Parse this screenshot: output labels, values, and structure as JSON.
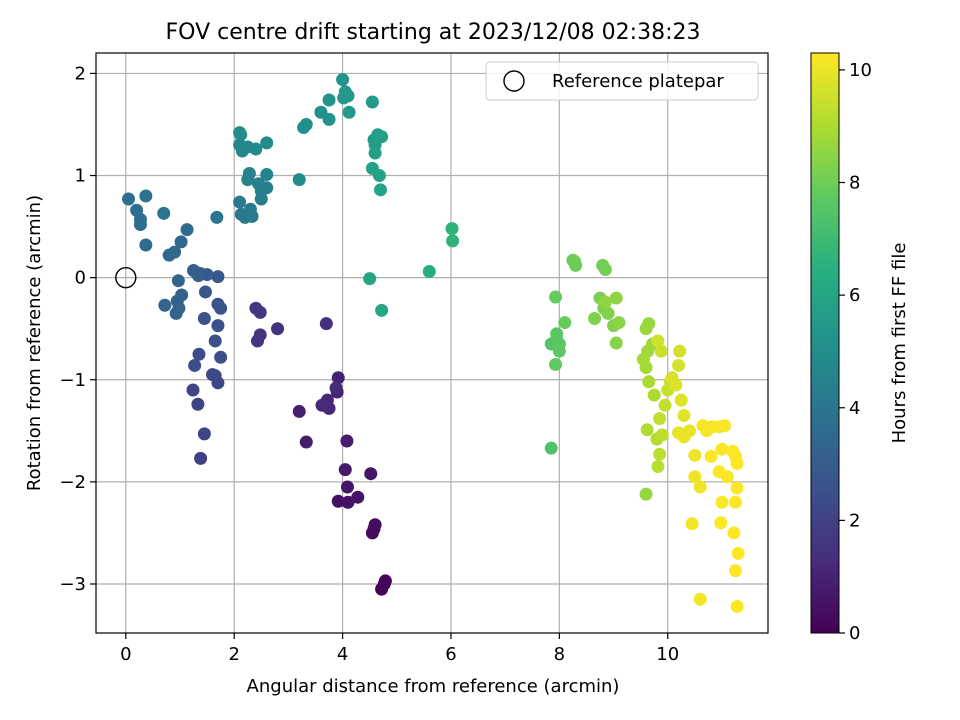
{
  "chart_data": {
    "type": "scatter",
    "title": "FOV centre drift starting at 2023/12/08 02:38:23",
    "xlabel": "Angular distance from reference (arcmin)",
    "ylabel": "Rotation from reference (arcmin)",
    "xlim": [
      -0.55,
      11.85
    ],
    "ylim": [
      -3.48,
      2.2
    ],
    "xticks": [
      0,
      2,
      4,
      6,
      8,
      10
    ],
    "xtick_labels": [
      "0",
      "2",
      "4",
      "6",
      "8",
      "10"
    ],
    "yticks": [
      -3,
      -2,
      -1,
      0,
      1,
      2
    ],
    "ytick_labels": [
      "−3",
      "−2",
      "−1",
      "0",
      "1",
      "2"
    ],
    "grid": true,
    "legend": {
      "position": "top-right",
      "entries": [
        "Reference platepar"
      ]
    },
    "reference_point": {
      "x": 0,
      "y": 0,
      "label": "Reference platepar"
    },
    "colorbar": {
      "label": "Hours from first FF file",
      "range": [
        0,
        10.3
      ],
      "ticks": [
        0,
        2,
        4,
        6,
        8,
        10
      ],
      "tick_labels": [
        "0",
        "2",
        "4",
        "6",
        "8",
        "10"
      ],
      "colormap": "viridis"
    },
    "points": [
      {
        "x": 4.72,
        "y": -3.05,
        "c": 0.05
      },
      {
        "x": 4.79,
        "y": -2.97,
        "c": 0.1
      },
      {
        "x": 4.77,
        "y": -3.0,
        "c": 0.15
      },
      {
        "x": 4.55,
        "y": -2.5,
        "c": 0.25
      },
      {
        "x": 4.6,
        "y": -2.42,
        "c": 0.3
      },
      {
        "x": 4.58,
        "y": -2.46,
        "c": 0.35
      },
      {
        "x": 3.92,
        "y": -2.19,
        "c": 0.45
      },
      {
        "x": 4.1,
        "y": -2.2,
        "c": 0.5
      },
      {
        "x": 4.28,
        "y": -2.15,
        "c": 0.55
      },
      {
        "x": 4.52,
        "y": -1.92,
        "c": 0.6
      },
      {
        "x": 4.09,
        "y": -2.05,
        "c": 0.65
      },
      {
        "x": 4.05,
        "y": -1.88,
        "c": 0.7
      },
      {
        "x": 4.08,
        "y": -1.6,
        "c": 0.8
      },
      {
        "x": 3.33,
        "y": -1.61,
        "c": 0.85
      },
      {
        "x": 3.2,
        "y": -1.31,
        "c": 0.9
      },
      {
        "x": 3.92,
        "y": -0.98,
        "c": 1.0
      },
      {
        "x": 3.9,
        "y": -1.12,
        "c": 1.05
      },
      {
        "x": 3.72,
        "y": -1.2,
        "c": 1.1
      },
      {
        "x": 3.75,
        "y": -1.28,
        "c": 1.15
      },
      {
        "x": 3.62,
        "y": -1.25,
        "c": 1.2
      },
      {
        "x": 3.88,
        "y": -1.08,
        "c": 1.25
      },
      {
        "x": 3.7,
        "y": -0.45,
        "c": 1.35
      },
      {
        "x": 2.8,
        "y": -0.5,
        "c": 1.45
      },
      {
        "x": 2.48,
        "y": -0.56,
        "c": 1.5
      },
      {
        "x": 2.43,
        "y": -0.62,
        "c": 1.55
      },
      {
        "x": 2.48,
        "y": -0.34,
        "c": 1.6
      },
      {
        "x": 2.4,
        "y": -0.3,
        "c": 1.65
      },
      {
        "x": 1.38,
        "y": -1.77,
        "c": 2.0
      },
      {
        "x": 1.45,
        "y": -1.53,
        "c": 2.05
      },
      {
        "x": 1.33,
        "y": -1.24,
        "c": 2.1
      },
      {
        "x": 1.24,
        "y": -1.1,
        "c": 2.15
      },
      {
        "x": 1.7,
        "y": -1.03,
        "c": 2.2
      },
      {
        "x": 1.6,
        "y": -0.95,
        "c": 2.25
      },
      {
        "x": 1.65,
        "y": -0.96,
        "c": 2.3
      },
      {
        "x": 1.35,
        "y": -0.75,
        "c": 2.35
      },
      {
        "x": 1.27,
        "y": -0.86,
        "c": 2.4
      },
      {
        "x": 1.75,
        "y": -0.78,
        "c": 2.45
      },
      {
        "x": 1.65,
        "y": -0.62,
        "c": 2.5
      },
      {
        "x": 1.7,
        "y": -0.47,
        "c": 2.55
      },
      {
        "x": 1.45,
        "y": -0.4,
        "c": 2.6
      },
      {
        "x": 1.75,
        "y": -0.3,
        "c": 2.65
      },
      {
        "x": 1.7,
        "y": -0.26,
        "c": 2.7
      },
      {
        "x": 1.47,
        "y": -0.14,
        "c": 2.75
      },
      {
        "x": 1.7,
        "y": 0.01,
        "c": 2.8
      },
      {
        "x": 1.5,
        "y": 0.03,
        "c": 2.85
      },
      {
        "x": 1.38,
        "y": 0.04,
        "c": 2.9
      },
      {
        "x": 1.3,
        "y": 0.05,
        "c": 2.95
      },
      {
        "x": 1.25,
        "y": 0.07,
        "c": 3.0
      },
      {
        "x": 1.34,
        "y": 0.02,
        "c": 3.05
      },
      {
        "x": 1.03,
        "y": -0.17,
        "c": 3.1
      },
      {
        "x": 0.95,
        "y": -0.23,
        "c": 3.15
      },
      {
        "x": 0.98,
        "y": -0.3,
        "c": 3.2
      },
      {
        "x": 0.93,
        "y": -0.35,
        "c": 3.25
      },
      {
        "x": 0.72,
        "y": -0.27,
        "c": 3.3
      },
      {
        "x": 0.97,
        "y": -0.03,
        "c": 3.35
      },
      {
        "x": 0.8,
        "y": 0.22,
        "c": 3.4
      },
      {
        "x": 0.9,
        "y": 0.25,
        "c": 3.45
      },
      {
        "x": 1.02,
        "y": 0.35,
        "c": 3.5
      },
      {
        "x": 1.13,
        "y": 0.47,
        "c": 3.55
      },
      {
        "x": 0.37,
        "y": 0.32,
        "c": 3.6
      },
      {
        "x": 0.27,
        "y": 0.52,
        "c": 3.65
      },
      {
        "x": 0.27,
        "y": 0.57,
        "c": 3.7
      },
      {
        "x": 0.2,
        "y": 0.66,
        "c": 3.75
      },
      {
        "x": 0.05,
        "y": 0.77,
        "c": 3.8
      },
      {
        "x": 0.37,
        "y": 0.8,
        "c": 3.85
      },
      {
        "x": 0.7,
        "y": 0.63,
        "c": 3.9
      },
      {
        "x": 1.68,
        "y": 0.59,
        "c": 4.0
      },
      {
        "x": 2.13,
        "y": 0.62,
        "c": 4.05
      },
      {
        "x": 2.2,
        "y": 0.59,
        "c": 4.1
      },
      {
        "x": 2.33,
        "y": 0.6,
        "c": 4.15
      },
      {
        "x": 2.3,
        "y": 0.67,
        "c": 4.2
      },
      {
        "x": 2.1,
        "y": 0.74,
        "c": 4.25
      },
      {
        "x": 2.5,
        "y": 0.77,
        "c": 4.3
      },
      {
        "x": 2.5,
        "y": 0.85,
        "c": 4.35
      },
      {
        "x": 2.6,
        "y": 0.88,
        "c": 4.4
      },
      {
        "x": 2.45,
        "y": 0.92,
        "c": 4.45
      },
      {
        "x": 2.25,
        "y": 0.96,
        "c": 4.5
      },
      {
        "x": 2.28,
        "y": 1.02,
        "c": 4.55
      },
      {
        "x": 2.6,
        "y": 1.01,
        "c": 4.6
      },
      {
        "x": 2.15,
        "y": 1.24,
        "c": 4.65
      },
      {
        "x": 2.1,
        "y": 1.3,
        "c": 4.7
      },
      {
        "x": 2.25,
        "y": 1.28,
        "c": 4.75
      },
      {
        "x": 2.4,
        "y": 1.26,
        "c": 4.8
      },
      {
        "x": 2.6,
        "y": 1.32,
        "c": 4.85
      },
      {
        "x": 2.1,
        "y": 1.42,
        "c": 4.9
      },
      {
        "x": 2.12,
        "y": 1.4,
        "c": 4.95
      },
      {
        "x": 3.2,
        "y": 0.96,
        "c": 5.0
      },
      {
        "x": 3.28,
        "y": 1.47,
        "c": 5.05
      },
      {
        "x": 3.33,
        "y": 1.5,
        "c": 5.1
      },
      {
        "x": 3.6,
        "y": 1.62,
        "c": 5.15
      },
      {
        "x": 3.75,
        "y": 1.55,
        "c": 5.2
      },
      {
        "x": 3.75,
        "y": 1.74,
        "c": 5.25
      },
      {
        "x": 4.0,
        "y": 1.94,
        "c": 5.3
      },
      {
        "x": 4.05,
        "y": 1.82,
        "c": 5.35
      },
      {
        "x": 4.02,
        "y": 1.76,
        "c": 5.4
      },
      {
        "x": 4.1,
        "y": 1.78,
        "c": 5.45
      },
      {
        "x": 4.12,
        "y": 1.62,
        "c": 5.5
      },
      {
        "x": 4.55,
        "y": 1.72,
        "c": 5.55
      },
      {
        "x": 4.58,
        "y": 1.35,
        "c": 5.6
      },
      {
        "x": 4.6,
        "y": 1.3,
        "c": 5.65
      },
      {
        "x": 4.65,
        "y": 1.4,
        "c": 5.7
      },
      {
        "x": 4.72,
        "y": 1.38,
        "c": 5.75
      },
      {
        "x": 4.6,
        "y": 1.22,
        "c": 5.8
      },
      {
        "x": 4.55,
        "y": 1.07,
        "c": 5.85
      },
      {
        "x": 4.68,
        "y": 1.0,
        "c": 5.9
      },
      {
        "x": 4.7,
        "y": 0.86,
        "c": 5.95
      },
      {
        "x": 4.5,
        "y": -0.01,
        "c": 6.0
      },
      {
        "x": 4.72,
        "y": -0.32,
        "c": 6.05
      },
      {
        "x": 5.6,
        "y": 0.06,
        "c": 6.4
      },
      {
        "x": 6.02,
        "y": 0.48,
        "c": 6.6
      },
      {
        "x": 6.03,
        "y": 0.36,
        "c": 6.65
      },
      {
        "x": 7.85,
        "y": -1.67,
        "c": 7.4
      },
      {
        "x": 7.85,
        "y": -0.65,
        "c": 7.5
      },
      {
        "x": 7.95,
        "y": -0.6,
        "c": 7.55
      },
      {
        "x": 8.0,
        "y": -0.65,
        "c": 7.6
      },
      {
        "x": 7.95,
        "y": -0.55,
        "c": 7.65
      },
      {
        "x": 8.0,
        "y": -0.72,
        "c": 7.7
      },
      {
        "x": 7.93,
        "y": -0.85,
        "c": 7.75
      },
      {
        "x": 7.93,
        "y": -0.19,
        "c": 7.8
      },
      {
        "x": 8.1,
        "y": -0.44,
        "c": 7.85
      },
      {
        "x": 8.25,
        "y": 0.17,
        "c": 7.9
      },
      {
        "x": 8.3,
        "y": 0.12,
        "c": 7.95
      },
      {
        "x": 8.28,
        "y": 0.16,
        "c": 8.0
      },
      {
        "x": 8.8,
        "y": 0.12,
        "c": 8.05
      },
      {
        "x": 8.85,
        "y": 0.08,
        "c": 8.1
      },
      {
        "x": 8.75,
        "y": -0.2,
        "c": 8.15
      },
      {
        "x": 8.82,
        "y": -0.3,
        "c": 8.2
      },
      {
        "x": 8.65,
        "y": -0.4,
        "c": 8.25
      },
      {
        "x": 8.9,
        "y": -0.35,
        "c": 8.3
      },
      {
        "x": 9.0,
        "y": -0.47,
        "c": 8.35
      },
      {
        "x": 9.05,
        "y": -0.64,
        "c": 8.4
      },
      {
        "x": 9.1,
        "y": -0.44,
        "c": 8.45
      },
      {
        "x": 9.05,
        "y": -0.2,
        "c": 8.5
      },
      {
        "x": 8.85,
        "y": -0.24,
        "c": 8.55
      },
      {
        "x": 9.6,
        "y": -2.12,
        "c": 8.6
      },
      {
        "x": 9.65,
        "y": -0.45,
        "c": 8.65
      },
      {
        "x": 9.6,
        "y": -0.5,
        "c": 8.7
      },
      {
        "x": 9.72,
        "y": -0.65,
        "c": 8.75
      },
      {
        "x": 9.63,
        "y": -0.72,
        "c": 8.8
      },
      {
        "x": 9.55,
        "y": -0.8,
        "c": 8.85
      },
      {
        "x": 9.6,
        "y": -0.88,
        "c": 8.9
      },
      {
        "x": 9.65,
        "y": -1.02,
        "c": 8.95
      },
      {
        "x": 9.75,
        "y": -1.15,
        "c": 9.0
      },
      {
        "x": 9.62,
        "y": -1.49,
        "c": 9.05
      },
      {
        "x": 9.8,
        "y": -1.58,
        "c": 9.1
      },
      {
        "x": 9.82,
        "y": -1.85,
        "c": 9.15
      },
      {
        "x": 9.85,
        "y": -1.73,
        "c": 9.2
      },
      {
        "x": 9.9,
        "y": -1.54,
        "c": 9.25
      },
      {
        "x": 9.85,
        "y": -1.38,
        "c": 9.3
      },
      {
        "x": 9.95,
        "y": -1.25,
        "c": 9.35
      },
      {
        "x": 10.0,
        "y": -1.1,
        "c": 9.4
      },
      {
        "x": 10.05,
        "y": -1.02,
        "c": 9.45
      },
      {
        "x": 9.88,
        "y": -0.72,
        "c": 9.5
      },
      {
        "x": 9.82,
        "y": -0.62,
        "c": 9.55
      },
      {
        "x": 10.22,
        "y": -0.72,
        "c": 9.6
      },
      {
        "x": 10.2,
        "y": -0.86,
        "c": 9.65
      },
      {
        "x": 10.08,
        "y": -0.98,
        "c": 9.7
      },
      {
        "x": 10.15,
        "y": -1.05,
        "c": 9.75
      },
      {
        "x": 10.25,
        "y": -1.2,
        "c": 9.8
      },
      {
        "x": 10.3,
        "y": -1.35,
        "c": 9.85
      },
      {
        "x": 10.2,
        "y": -1.52,
        "c": 9.9
      },
      {
        "x": 10.3,
        "y": -1.56,
        "c": 9.95
      },
      {
        "x": 10.4,
        "y": -1.5,
        "c": 10.0
      },
      {
        "x": 10.5,
        "y": -1.74,
        "c": 10.05
      },
      {
        "x": 10.5,
        "y": -1.95,
        "c": 10.08
      },
      {
        "x": 10.6,
        "y": -2.05,
        "c": 10.1
      },
      {
        "x": 10.45,
        "y": -2.41,
        "c": 10.12
      },
      {
        "x": 10.6,
        "y": -3.15,
        "c": 10.15
      },
      {
        "x": 10.65,
        "y": -1.45,
        "c": 10.17
      },
      {
        "x": 10.72,
        "y": -1.5,
        "c": 10.19
      },
      {
        "x": 10.82,
        "y": -1.46,
        "c": 10.2
      },
      {
        "x": 10.95,
        "y": -1.46,
        "c": 10.22
      },
      {
        "x": 11.05,
        "y": -1.45,
        "c": 10.23
      },
      {
        "x": 11.0,
        "y": -1.68,
        "c": 10.24
      },
      {
        "x": 10.8,
        "y": -1.75,
        "c": 10.25
      },
      {
        "x": 10.95,
        "y": -1.9,
        "c": 10.26
      },
      {
        "x": 11.0,
        "y": -2.2,
        "c": 10.27
      },
      {
        "x": 10.98,
        "y": -2.4,
        "c": 10.28
      },
      {
        "x": 11.1,
        "y": -1.95,
        "c": 10.29
      },
      {
        "x": 11.2,
        "y": -1.7,
        "c": 10.3
      },
      {
        "x": 11.28,
        "y": -1.82,
        "c": 10.3
      },
      {
        "x": 11.25,
        "y": -1.75,
        "c": 10.3
      },
      {
        "x": 11.28,
        "y": -2.06,
        "c": 10.3
      },
      {
        "x": 11.25,
        "y": -2.2,
        "c": 10.3
      },
      {
        "x": 11.22,
        "y": -2.5,
        "c": 10.3
      },
      {
        "x": 11.3,
        "y": -2.7,
        "c": 10.3
      },
      {
        "x": 11.25,
        "y": -2.87,
        "c": 10.3
      },
      {
        "x": 11.28,
        "y": -3.22,
        "c": 10.3
      }
    ]
  }
}
